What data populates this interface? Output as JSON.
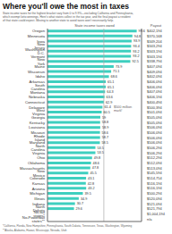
{
  "chart_data": {
    "type": "bar",
    "orientation": "horizontal",
    "title": "Where you'll owe the most in taxes",
    "subtitle": "State income taxes for the highest bracket vary from 0 to 9.9%—excluding California and Pennsylvania,\nwhich exempt lotto winnings. Here's what states collect in the tax year, and the final payout a resident\nof that state could expect. Moving to another state to avoid taxes won't necessarily help.",
    "xlabel": "State income taxes owed",
    "y2label": "Payout",
    "categories": [
      "Oregon",
      "Minnesota",
      "Iowa",
      "New Jersey",
      "Washington D.C.",
      "Vermont",
      "New York",
      "Maine",
      "Wisconsin",
      "Idaho",
      "Arkansas",
      "South Carolina",
      "Montana",
      "Nebraska",
      "Connecticut",
      "Delaware",
      "West Virginia",
      "Georgia",
      "Kentucky",
      "Louisiana",
      "Missouri",
      "Rhode Island",
      "Maryland",
      "North Carolina",
      "Virginia",
      "Ohio",
      "Oklahoma",
      "Massachusetts",
      "New Mexico",
      "Colorado",
      "Kansas",
      "Arizona",
      "Michigan",
      "Illinois",
      "Indiana",
      "North Dakota",
      "No-tax states*",
      "No-Powerball states**"
    ],
    "values": [
      99.6,
      94.8,
      93.9,
      93.4,
      93.2,
      93.2,
      92.5,
      73.9,
      71.1,
      68.6,
      65.1,
      65.1,
      64.3,
      63.6,
      62.9,
      61.4,
      60.5,
      59.0,
      58.8,
      58.9,
      58.6,
      58.7,
      58.5,
      53.5,
      53.5,
      49.8,
      48.6,
      47.8,
      45.5,
      43.1,
      42.8,
      43.2,
      39.5,
      34.9,
      30.7,
      29.6,
      0,
      0
    ],
    "y2_categories": [
      "$402,194",
      "$370,168",
      "$349,204",
      "$343,294",
      "$343,194",
      "$343,194",
      "$338,794",
      "$407,094",
      "$409,094",
      "$402,094",
      "$406,094",
      "$406,094",
      "$407,094",
      "$406,194",
      "$400,494",
      "$500,394",
      "$501,094",
      "$505,094",
      "$505,094",
      "$506,094",
      "$506,094",
      "$506,094",
      "$506,094",
      "$506,294",
      "$506,294",
      "$512,294",
      "$512,094",
      "$513,094",
      "$545,594",
      "$514,754",
      "$516,194",
      "$516,194",
      "$500,294",
      "$520,094",
      "$521,094",
      "$521,794",
      "$1,004,194",
      "n/a"
    ],
    "color": "#3ecfbf",
    "xlim": [
      0,
      105
    ],
    "data_labels": true,
    "tick_labels": "y",
    "grid": false,
    "annotations": [
      {
        "x": 62.9,
        "text": "$500 million\nmark!"
      }
    ],
    "footnotes": [
      "*California, Florida, New Hampshire, Pennsylvania, South Dakota, Tennessee, Texas, Washington, Wyoming",
      "**Alaska, Alabama, Hawaii, Mississippi, Nevada, Utah"
    ]
  }
}
